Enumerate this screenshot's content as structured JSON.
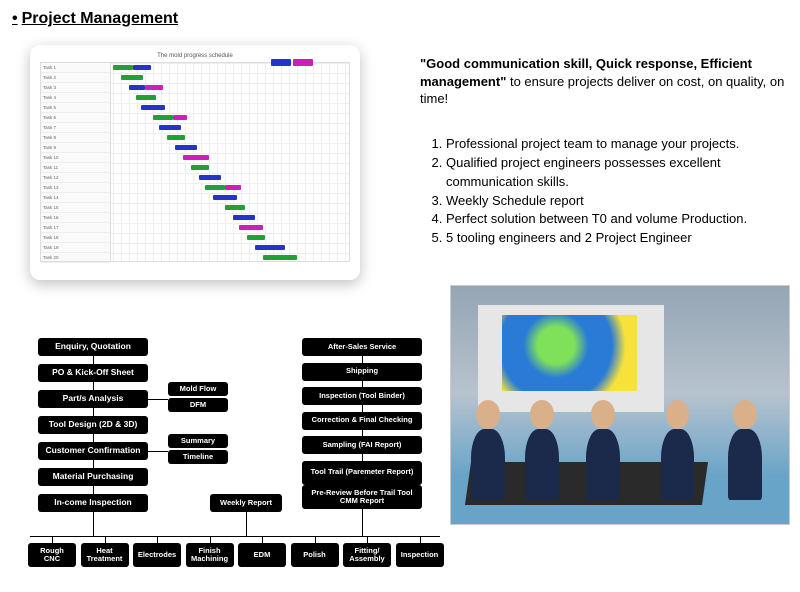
{
  "title": "Project Management",
  "tagline": {
    "bold": "\"Good communication skill, Quick response, Efficient management\"",
    "rest": " to ensure projects deliver on cost, on quality, on time!"
  },
  "bullets": [
    "Professional project team to manage your projects.",
    "Qualified project engineers possesses excellent communication skills.",
    "Weekly Schedule report",
    "Perfect solution between T0 and volume Production.",
    "5 tooling engineers and 2 Project Engineer"
  ],
  "gantt": {
    "title": "The mold progress schedule",
    "row_count": 20,
    "colors": {
      "green": "#1fa038",
      "blue": "#2533c9",
      "magenta": "#c81fbd"
    },
    "bars": [
      {
        "row": 0,
        "start": 72,
        "len": 20,
        "c": "green"
      },
      {
        "row": 0,
        "start": 92,
        "len": 18,
        "c": "blue"
      },
      {
        "row": 1,
        "start": 80,
        "len": 22,
        "c": "green"
      },
      {
        "row": 2,
        "start": 88,
        "len": 16,
        "c": "blue"
      },
      {
        "row": 2,
        "start": 104,
        "len": 18,
        "c": "magenta"
      },
      {
        "row": 3,
        "start": 95,
        "len": 20,
        "c": "green"
      },
      {
        "row": 4,
        "start": 100,
        "len": 24,
        "c": "blue"
      },
      {
        "row": 5,
        "start": 112,
        "len": 20,
        "c": "green"
      },
      {
        "row": 5,
        "start": 132,
        "len": 14,
        "c": "magenta"
      },
      {
        "row": 6,
        "start": 118,
        "len": 22,
        "c": "blue"
      },
      {
        "row": 7,
        "start": 126,
        "len": 18,
        "c": "green"
      },
      {
        "row": 8,
        "start": 134,
        "len": 22,
        "c": "blue"
      },
      {
        "row": 9,
        "start": 142,
        "len": 26,
        "c": "magenta"
      },
      {
        "row": 10,
        "start": 150,
        "len": 18,
        "c": "green"
      },
      {
        "row": 11,
        "start": 158,
        "len": 22,
        "c": "blue"
      },
      {
        "row": 12,
        "start": 164,
        "len": 20,
        "c": "green"
      },
      {
        "row": 12,
        "start": 184,
        "len": 16,
        "c": "magenta"
      },
      {
        "row": 13,
        "start": 172,
        "len": 24,
        "c": "blue"
      },
      {
        "row": 14,
        "start": 184,
        "len": 20,
        "c": "green"
      },
      {
        "row": 15,
        "start": 192,
        "len": 22,
        "c": "blue"
      },
      {
        "row": 16,
        "start": 198,
        "len": 24,
        "c": "magenta"
      },
      {
        "row": 17,
        "start": 206,
        "len": 18,
        "c": "green"
      },
      {
        "row": 18,
        "start": 214,
        "len": 30,
        "c": "blue"
      },
      {
        "row": 19,
        "start": 222,
        "len": 34,
        "c": "green"
      }
    ],
    "legend_bars": [
      {
        "start": 230,
        "len": 20,
        "c": "blue"
      },
      {
        "start": 252,
        "len": 20,
        "c": "magenta"
      }
    ]
  },
  "flow": {
    "left_col": [
      "Enquiry, Quotation",
      "PO & Kick-Off Sheet",
      "Part/s Analysis",
      "Tool Design (2D & 3D)",
      "Customer Confirmation",
      "Material Purchasing",
      "In-come Inspection"
    ],
    "left_side": {
      "mold_flow": "Mold Flow",
      "dfm": "DFM",
      "summary": "Summary",
      "timeline": "Timeline"
    },
    "right_col": [
      "After-Sales Service",
      "Shipping",
      "Inspection (Tool Binder)",
      "Correction & Final Checking",
      "Sampling (FAI Report)",
      "Tool Trail (Paremeter Report)",
      "Pre-Review Before Trail Tool CMM Report"
    ],
    "weekly": "Weekly Report",
    "bottom_row": [
      "Rough CNC",
      "Heat Treatment",
      "Electrodes",
      "Finish Machining",
      "EDM",
      "Polish",
      "Fitting/ Assembly",
      "Inspection"
    ]
  }
}
